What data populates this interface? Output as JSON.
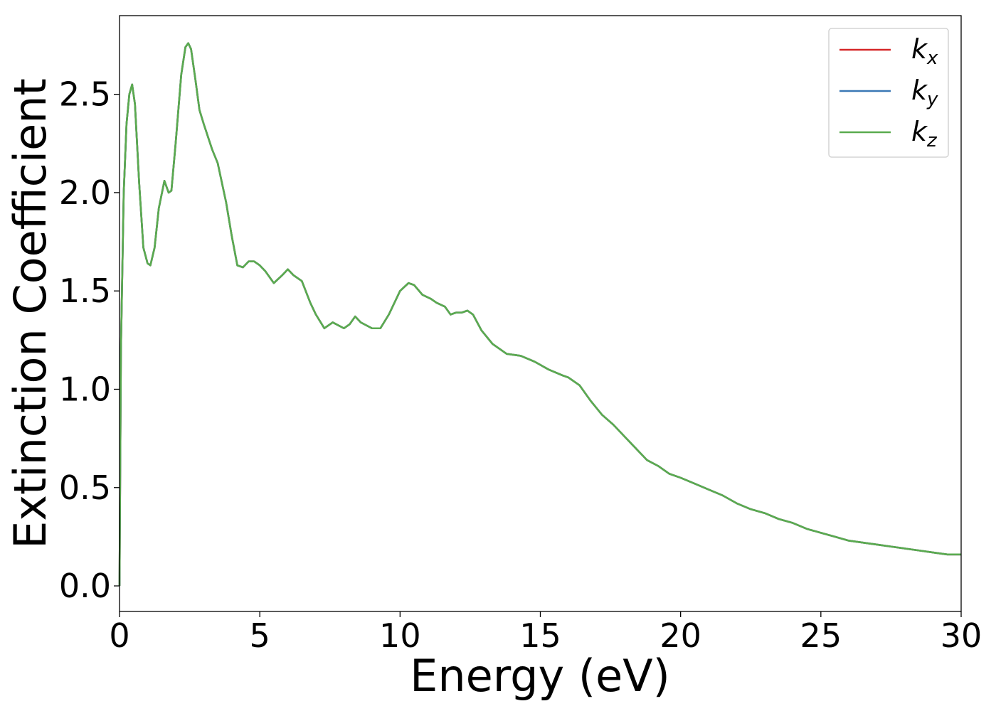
{
  "chart_data": {
    "type": "line",
    "xlabel": "Energy (eV)",
    "ylabel": "Extinction Coefficient",
    "xlim": [
      0,
      30
    ],
    "ylim": [
      -0.13,
      2.9
    ],
    "xticks": [
      "0",
      "5",
      "10",
      "15",
      "20",
      "25",
      "30"
    ],
    "yticks": [
      "0.0",
      "0.5",
      "1.0",
      "1.5",
      "2.0",
      "2.5"
    ],
    "grid": false,
    "legend_position": "top-right",
    "colors": {
      "kx": "#d62728",
      "ky": "#3a78b5",
      "kz": "#5aab4f"
    },
    "series": [
      {
        "name": "k",
        "sub": "x",
        "color_key": "kx"
      },
      {
        "name": "k",
        "sub": "y",
        "color_key": "ky"
      },
      {
        "name": "k",
        "sub": "z",
        "color_key": "kz"
      }
    ],
    "x": [
      0,
      0.05,
      0.15,
      0.25,
      0.35,
      0.45,
      0.55,
      0.7,
      0.85,
      1.0,
      1.1,
      1.25,
      1.4,
      1.6,
      1.75,
      1.85,
      2.0,
      2.2,
      2.35,
      2.45,
      2.55,
      2.7,
      2.85,
      3.0,
      3.3,
      3.5,
      3.8,
      4.0,
      4.2,
      4.4,
      4.6,
      4.8,
      5.0,
      5.2,
      5.5,
      5.8,
      6.0,
      6.2,
      6.5,
      6.8,
      7.0,
      7.3,
      7.6,
      8.0,
      8.2,
      8.4,
      8.6,
      9.0,
      9.3,
      9.6,
      10.0,
      10.3,
      10.5,
      10.8,
      11.1,
      11.3,
      11.6,
      11.8,
      12.0,
      12.2,
      12.4,
      12.6,
      12.9,
      13.3,
      13.8,
      14.3,
      14.8,
      15.3,
      15.8,
      16.0,
      16.4,
      16.8,
      17.2,
      17.6,
      18.0,
      18.4,
      18.8,
      19.2,
      19.6,
      20.0,
      20.5,
      21.0,
      21.5,
      22.0,
      22.5,
      23.0,
      23.5,
      24.0,
      24.5,
      25.0,
      25.5,
      26.0,
      26.5,
      27.0,
      27.5,
      28.0,
      28.5,
      29.0,
      29.5,
      30.0
    ],
    "values": [
      0.0,
      1.2,
      2.0,
      2.35,
      2.5,
      2.55,
      2.45,
      2.05,
      1.72,
      1.64,
      1.63,
      1.72,
      1.92,
      2.06,
      2.0,
      2.01,
      2.25,
      2.6,
      2.74,
      2.76,
      2.73,
      2.58,
      2.42,
      2.35,
      2.22,
      2.15,
      1.95,
      1.78,
      1.63,
      1.62,
      1.65,
      1.65,
      1.63,
      1.6,
      1.54,
      1.58,
      1.61,
      1.58,
      1.55,
      1.44,
      1.38,
      1.31,
      1.34,
      1.31,
      1.33,
      1.37,
      1.34,
      1.31,
      1.31,
      1.38,
      1.5,
      1.54,
      1.53,
      1.48,
      1.46,
      1.44,
      1.42,
      1.38,
      1.39,
      1.39,
      1.4,
      1.38,
      1.3,
      1.23,
      1.18,
      1.17,
      1.14,
      1.1,
      1.07,
      1.06,
      1.02,
      0.94,
      0.87,
      0.82,
      0.76,
      0.7,
      0.64,
      0.61,
      0.57,
      0.55,
      0.52,
      0.49,
      0.46,
      0.42,
      0.39,
      0.37,
      0.34,
      0.32,
      0.29,
      0.27,
      0.25,
      0.23,
      0.22,
      0.21,
      0.2,
      0.19,
      0.18,
      0.17,
      0.16,
      0.16
    ]
  }
}
